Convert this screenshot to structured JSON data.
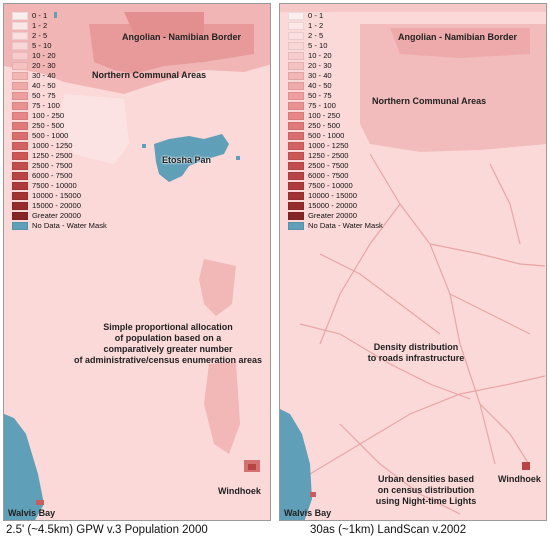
{
  "legend": [
    {
      "label": "0 - 1",
      "color": "#fdeeee"
    },
    {
      "label": "1 - 2",
      "color": "#fce7e7"
    },
    {
      "label": "2 - 5",
      "color": "#fbdfdf"
    },
    {
      "label": "5 - 10",
      "color": "#fad7d7"
    },
    {
      "label": "10 - 20",
      "color": "#f8cccc"
    },
    {
      "label": "20 - 30",
      "color": "#f6c1c1"
    },
    {
      "label": "30 - 40",
      "color": "#f4b5b5"
    },
    {
      "label": "40 - 50",
      "color": "#f1aaaa"
    },
    {
      "label": "50 - 75",
      "color": "#ee9e9e"
    },
    {
      "label": "75 - 100",
      "color": "#ea9292"
    },
    {
      "label": "100 - 250",
      "color": "#e68686"
    },
    {
      "label": "250 - 500",
      "color": "#e07a7a"
    },
    {
      "label": "500 - 1000",
      "color": "#da6e6e"
    },
    {
      "label": "1000 - 1250",
      "color": "#d36262"
    },
    {
      "label": "1250 - 2500",
      "color": "#cb5757"
    },
    {
      "label": "2500 - 7500",
      "color": "#c24d4d"
    },
    {
      "label": "6000 - 7500",
      "color": "#b84444"
    },
    {
      "label": "7500 - 10000",
      "color": "#ad3b3b"
    },
    {
      "label": "10000 - 15000",
      "color": "#a13333"
    },
    {
      "label": "15000 - 20000",
      "color": "#942c2c"
    },
    {
      "label": "Greater 20000",
      "color": "#862525"
    },
    {
      "label": "No Data - Water Mask",
      "color": "#5f9fb8"
    }
  ],
  "left": {
    "border_label": "Angolian - Namibian Border",
    "nca_label": "Northern Communal Areas",
    "etosha_label": "Etosha Pan",
    "note_lines": [
      "Simple proportional allocation",
      "of population based on a",
      "comparatively greater number",
      "of administrative/census enumeration areas"
    ],
    "windhoek_label": "Windhoek",
    "walvis_label": "Walvis Bay",
    "caption": "2.5' (~4.5km) GPW v.3 Population 2000"
  },
  "right": {
    "border_label": "Angolian - Namibian Border",
    "nca_label": "Northern Communal Areas",
    "note_lines": [
      "Density distribution",
      "to roads infrastructure"
    ],
    "urban_lines": [
      "Urban densities based",
      "on census distribution",
      "using Night-time Lights"
    ],
    "windhoek_label": "Windhoek",
    "walvis_label": "Walvis Bay",
    "caption": "30as (~1km) LandScan v.2002"
  },
  "colors": {
    "base": "#fbd9d9",
    "water": "#5f9fb8",
    "high": "#e9a0a0",
    "urban": "#c95c5c"
  }
}
